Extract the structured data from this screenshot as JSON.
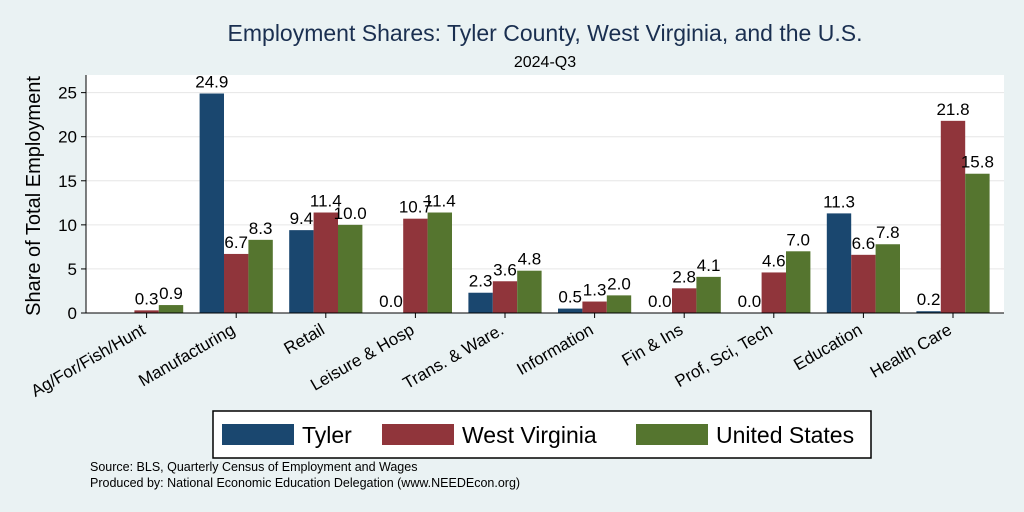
{
  "chart_data": {
    "type": "bar",
    "title": "Employment Shares: Tyler County, West Virginia, and the U.S.",
    "subtitle": "2024-Q3",
    "xlabel": "",
    "ylabel": "Share of Total Employment",
    "ylim": [
      0,
      27
    ],
    "yticks": [
      0,
      5,
      10,
      15,
      20,
      25
    ],
    "grid": true,
    "legend_position": "bottom",
    "categories": [
      "Ag/For/Fish/Hunt",
      "Manufacturing",
      "Retail",
      "Leisure & Hosp",
      "Trans. & Ware.",
      "Information",
      "Fin & Ins",
      "Prof, Sci, Tech",
      "Education",
      "Health Care"
    ],
    "series": [
      {
        "name": "Tyler",
        "color": "#1a476f",
        "values": [
          null,
          24.9,
          9.4,
          0.0,
          2.3,
          0.5,
          0.0,
          0.0,
          11.3,
          0.2
        ],
        "labels": [
          "",
          "24.9",
          "9.4",
          "0.0",
          "2.3",
          "0.5",
          "0.0",
          "0.0",
          "11.3",
          "0.2"
        ]
      },
      {
        "name": "West Virginia",
        "color": "#90353b",
        "values": [
          0.3,
          6.7,
          11.4,
          10.7,
          3.6,
          1.3,
          2.8,
          4.6,
          6.6,
          21.8
        ],
        "labels": [
          "0.3",
          "6.7",
          "11.4",
          "10.7",
          "3.6",
          "1.3",
          "2.8",
          "4.6",
          "6.6",
          "21.8"
        ]
      },
      {
        "name": "United States",
        "color": "#55752f",
        "values": [
          0.9,
          8.3,
          10.0,
          11.4,
          4.8,
          2.0,
          4.1,
          7.0,
          7.8,
          15.8
        ],
        "labels": [
          "0.9",
          "8.3",
          "10.0",
          "11.4",
          "4.8",
          "2.0",
          "4.1",
          "7.0",
          "7.8",
          "15.8"
        ]
      }
    ],
    "source_lines": [
      "Source: BLS, Quarterly Census of Employment and Wages",
      "Produced by: National Economic Education Delegation (www.NEEDEcon.org)"
    ]
  }
}
